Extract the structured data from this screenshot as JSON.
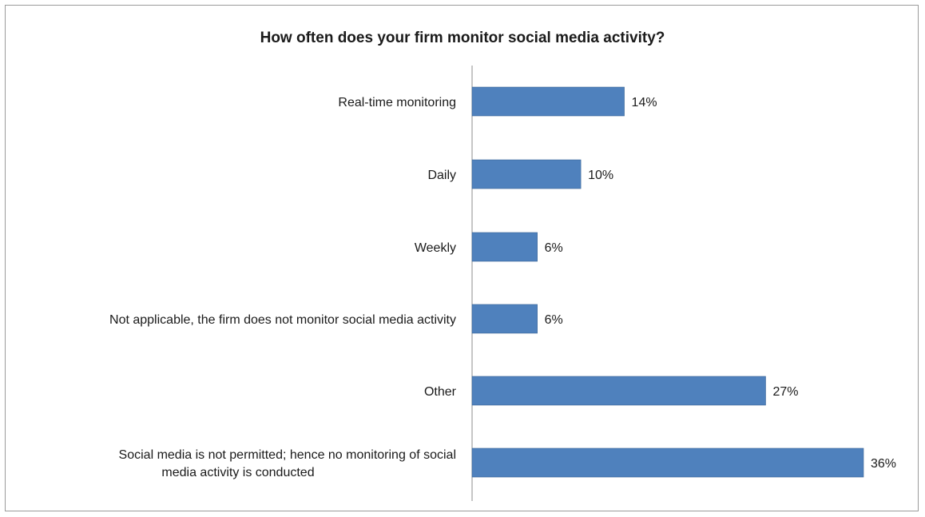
{
  "chart_data": {
    "type": "bar",
    "orientation": "horizontal",
    "title": "How often does your firm monitor social media activity?",
    "xlabel": "",
    "ylabel": "",
    "categories": [
      [
        "Real-time monitoring"
      ],
      [
        "Daily"
      ],
      [
        "Weekly"
      ],
      [
        "Not applicable, the firm does not monitor social media activity"
      ],
      [
        "Other"
      ],
      [
        "Social media is not permitted; hence no monitoring of social",
        "media activity is conducted"
      ]
    ],
    "values": [
      14,
      10,
      6,
      6,
      27,
      36
    ],
    "value_labels": [
      "14%",
      "10%",
      "6%",
      "6%",
      "27%",
      "36%"
    ],
    "xlim": [
      0,
      36
    ],
    "grid": false,
    "legend": "none",
    "bar_color": "#4f81bd"
  }
}
